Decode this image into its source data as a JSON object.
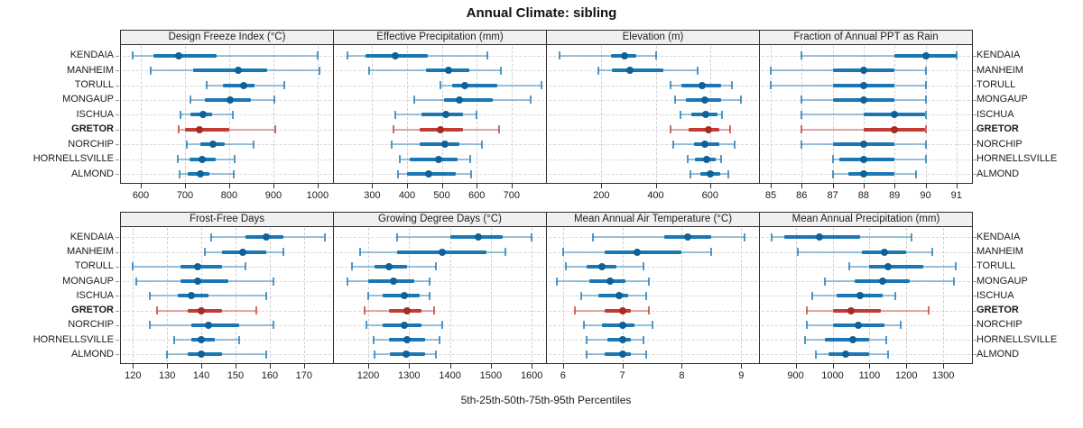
{
  "title": "Annual Climate: sibling",
  "caption": "5th-25th-50th-75th-95th Percentiles",
  "colors": {
    "series_blue": "#1B77B4",
    "series_blue_light": "rgba(27,119,180,0.42)",
    "series_blue_cap": "rgba(27,119,180,0.75)",
    "series_blue_dot": "#0E6299",
    "highlight_red": "#C23B35",
    "highlight_red_light": "rgba(194,59,53,0.42)",
    "highlight_red_cap": "rgba(194,59,53,0.75)",
    "highlight_red_dot": "#A62B22",
    "gridline": "#CFCFCF",
    "panel_border": "#2F2F2F",
    "header_bg": "#F0F0F0"
  },
  "chart_data": {
    "type": "scatter",
    "subtype": "multi-panel 5th-25th-50th-75th-95th percentile interval plot (lattice dotplot), 2 rows x 4 columns",
    "percentile_levels": [
      5,
      25,
      50,
      75,
      95
    ],
    "categories": [
      "KENDAIA",
      "MANHEIM",
      "TORULL",
      "MONGAUP",
      "ISCHUA",
      "GRETOR",
      "NORCHIP",
      "HORNELLSVILLE",
      "ALMOND"
    ],
    "highlight_category": "GRETOR",
    "layout": {
      "grid": "2x4",
      "gridlines": "dashed",
      "row_labels_both_sides": true,
      "legend": "none"
    },
    "panels": [
      {
        "label": "Design Freeze Index (°C)",
        "xlim": [
          555,
          1035
        ],
        "ticks": [
          600,
          700,
          800,
          900,
          1000
        ],
        "values": [
          [
            582,
            628,
            685,
            772,
            1000
          ],
          [
            622,
            718,
            820,
            886,
            1005
          ],
          [
            748,
            785,
            833,
            858,
            925
          ],
          [
            712,
            745,
            803,
            850,
            903
          ],
          [
            690,
            712,
            740,
            762,
            808
          ],
          [
            685,
            700,
            732,
            800,
            905
          ],
          [
            705,
            735,
            763,
            790,
            855
          ],
          [
            683,
            710,
            738,
            770,
            812
          ],
          [
            688,
            706,
            734,
            756,
            810
          ]
        ]
      },
      {
        "label": "Effective Precipitation (mm)",
        "xlim": [
          190,
          799
        ],
        "ticks": [
          300,
          400,
          500,
          600,
          700
        ],
        "values": [
          [
            230,
            280,
            365,
            460,
            630
          ],
          [
            290,
            455,
            520,
            580,
            670
          ],
          [
            495,
            530,
            565,
            660,
            785
          ],
          [
            420,
            505,
            550,
            645,
            755
          ],
          [
            365,
            440,
            510,
            560,
            600
          ],
          [
            360,
            435,
            495,
            560,
            665
          ],
          [
            355,
            435,
            508,
            550,
            615
          ],
          [
            378,
            408,
            490,
            545,
            580
          ],
          [
            373,
            400,
            462,
            540,
            583
          ]
        ]
      },
      {
        "label": "Elevation (m)",
        "xlim": [
          0,
          780
        ],
        "ticks": [
          200,
          400,
          600
        ],
        "values": [
          [
            45,
            235,
            285,
            330,
            400
          ],
          [
            190,
            240,
            305,
            430,
            555
          ],
          [
            455,
            495,
            570,
            640,
            680
          ],
          [
            470,
            510,
            580,
            640,
            715
          ],
          [
            490,
            530,
            585,
            628,
            645
          ],
          [
            455,
            520,
            595,
            635,
            675
          ],
          [
            465,
            540,
            580,
            635,
            690
          ],
          [
            518,
            545,
            588,
            620,
            640
          ],
          [
            528,
            563,
            600,
            638,
            668
          ]
        ]
      },
      {
        "label": "Fraction of Annual PPT as Rain",
        "xlim": [
          84.65,
          91.5
        ],
        "ticks": [
          85,
          86,
          87,
          88,
          89,
          90,
          91
        ],
        "values": [
          [
            86,
            89,
            90,
            91,
            91
          ],
          [
            85,
            87,
            88,
            89,
            90
          ],
          [
            85,
            87,
            88,
            89,
            90
          ],
          [
            86,
            87,
            88,
            89,
            90
          ],
          [
            86,
            88,
            89,
            90,
            90
          ],
          [
            86,
            88,
            89,
            90,
            90
          ],
          [
            86,
            87,
            88,
            89,
            90
          ],
          [
            87,
            87.2,
            88,
            89,
            90
          ],
          [
            87,
            87.5,
            88,
            89,
            89.7
          ]
        ]
      },
      {
        "label": "Frost-Free Days",
        "xlim": [
          116.5,
          178.5
        ],
        "ticks": [
          120,
          130,
          140,
          150,
          160,
          170
        ],
        "values": [
          [
            143,
            153,
            159,
            164,
            176
          ],
          [
            141,
            146,
            152,
            159,
            164
          ],
          [
            120,
            134,
            139,
            146,
            153
          ],
          [
            121,
            134,
            139,
            148,
            161
          ],
          [
            125,
            133,
            137,
            142,
            159
          ],
          [
            127,
            136,
            140,
            146,
            156
          ],
          [
            125,
            137,
            142,
            151,
            161
          ],
          [
            132,
            137,
            140,
            144,
            151
          ],
          [
            130,
            136,
            140,
            146,
            159
          ]
        ]
      },
      {
        "label": "Growing Degree Days (°C)",
        "xlim": [
          1116,
          1635
        ],
        "ticks": [
          1200,
          1300,
          1400,
          1500,
          1600
        ],
        "values": [
          [
            1270,
            1400,
            1470,
            1530,
            1600
          ],
          [
            1180,
            1270,
            1382,
            1490,
            1535
          ],
          [
            1160,
            1215,
            1250,
            1295,
            1365
          ],
          [
            1150,
            1200,
            1262,
            1312,
            1350
          ],
          [
            1200,
            1235,
            1288,
            1325,
            1350
          ],
          [
            1190,
            1250,
            1295,
            1330,
            1362
          ],
          [
            1195,
            1235,
            1288,
            1330,
            1380
          ],
          [
            1213,
            1250,
            1294,
            1340,
            1374
          ],
          [
            1215,
            1253,
            1292,
            1340,
            1366
          ]
        ]
      },
      {
        "label": "Mean Annual Air Temperature (°C)",
        "xlim": [
          5.73,
          9.3
        ],
        "ticks": [
          6,
          7,
          8,
          9
        ],
        "values": [
          [
            6.5,
            7.7,
            8.1,
            8.5,
            9.05
          ],
          [
            6.0,
            6.7,
            7.25,
            8.0,
            8.5
          ],
          [
            6.05,
            6.4,
            6.65,
            6.9,
            7.35
          ],
          [
            5.9,
            6.45,
            6.8,
            7.05,
            7.45
          ],
          [
            6.3,
            6.6,
            6.95,
            7.1,
            7.4
          ],
          [
            6.2,
            6.7,
            7.0,
            7.15,
            7.45
          ],
          [
            6.35,
            6.65,
            7.0,
            7.2,
            7.5
          ],
          [
            6.4,
            6.75,
            7.0,
            7.15,
            7.35
          ],
          [
            6.4,
            6.7,
            7.0,
            7.15,
            7.4
          ]
        ]
      },
      {
        "label": "Mean Annual Precipitation (mm)",
        "xlim": [
          803,
          1378
        ],
        "ticks": [
          900,
          1000,
          1100,
          1200,
          1300
        ],
        "values": [
          [
            835,
            870,
            965,
            1075,
            1215
          ],
          [
            905,
            1080,
            1140,
            1200,
            1270
          ],
          [
            1045,
            1100,
            1150,
            1245,
            1335
          ],
          [
            980,
            1060,
            1135,
            1210,
            1330
          ],
          [
            945,
            1010,
            1075,
            1135,
            1170
          ],
          [
            930,
            1000,
            1050,
            1130,
            1260
          ],
          [
            930,
            1000,
            1070,
            1140,
            1185
          ],
          [
            925,
            980,
            1055,
            1100,
            1145
          ],
          [
            955,
            990,
            1035,
            1100,
            1150
          ]
        ]
      }
    ]
  }
}
